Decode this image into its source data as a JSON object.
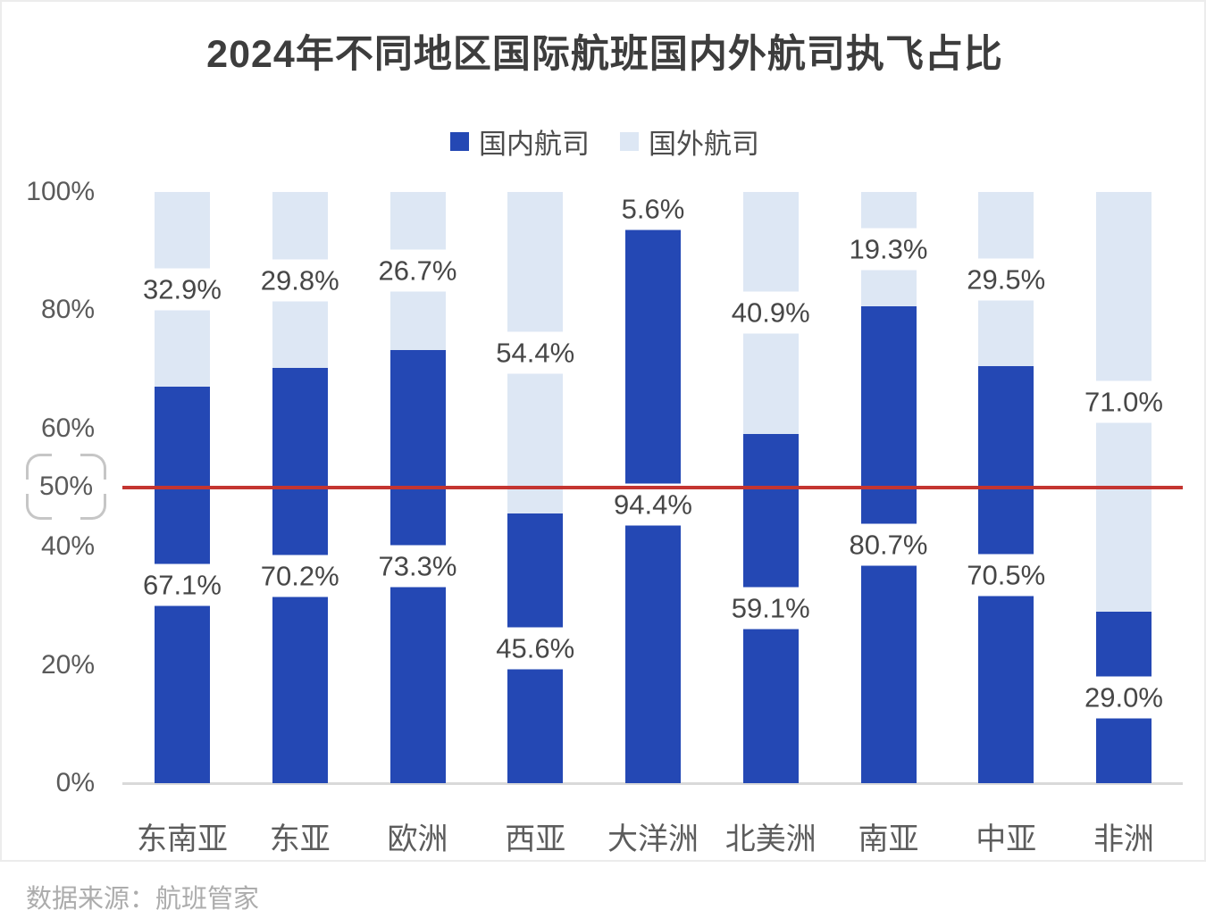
{
  "title": "2024年不同地区国际航班国内外航司执飞占比",
  "legend": {
    "items": [
      {
        "label": "国内航司",
        "color": "#2448B4"
      },
      {
        "label": "国外航司",
        "color": "#DDE7F4"
      }
    ]
  },
  "y_axis": {
    "ticks": [
      {
        "label": "100%",
        "value": 100
      },
      {
        "label": "80%",
        "value": 80
      },
      {
        "label": "60%",
        "value": 60
      },
      {
        "label": "40%",
        "value": 40
      },
      {
        "label": "20%",
        "value": 20
      },
      {
        "label": "0%",
        "value": 0
      }
    ],
    "highlight": {
      "label": "50%",
      "value": 50
    }
  },
  "reference_line": {
    "value": 50,
    "color": "#c43531"
  },
  "source_note": "数据来源：航班管家",
  "chart_data": {
    "type": "bar",
    "stacked": true,
    "percent": true,
    "title": "2024年不同地区国际航班国内外航司执飞占比",
    "categories": [
      "东南亚",
      "东亚",
      "欧洲",
      "西亚",
      "大洋洲",
      "北美洲",
      "南亚",
      "中亚",
      "非洲"
    ],
    "series": [
      {
        "name": "国内航司",
        "color": "#2448B4",
        "values": [
          67.1,
          70.2,
          73.3,
          45.6,
          94.4,
          59.1,
          80.7,
          70.5,
          29.0
        ]
      },
      {
        "name": "国外航司",
        "color": "#DDE7F4",
        "values": [
          32.9,
          29.8,
          26.7,
          54.4,
          5.6,
          40.9,
          19.3,
          29.5,
          71.0
        ]
      }
    ],
    "ylim": [
      0,
      100
    ],
    "grid": false,
    "legend_position": "top",
    "label_format": "one-decimal-percent",
    "reference_line_value": 50
  }
}
